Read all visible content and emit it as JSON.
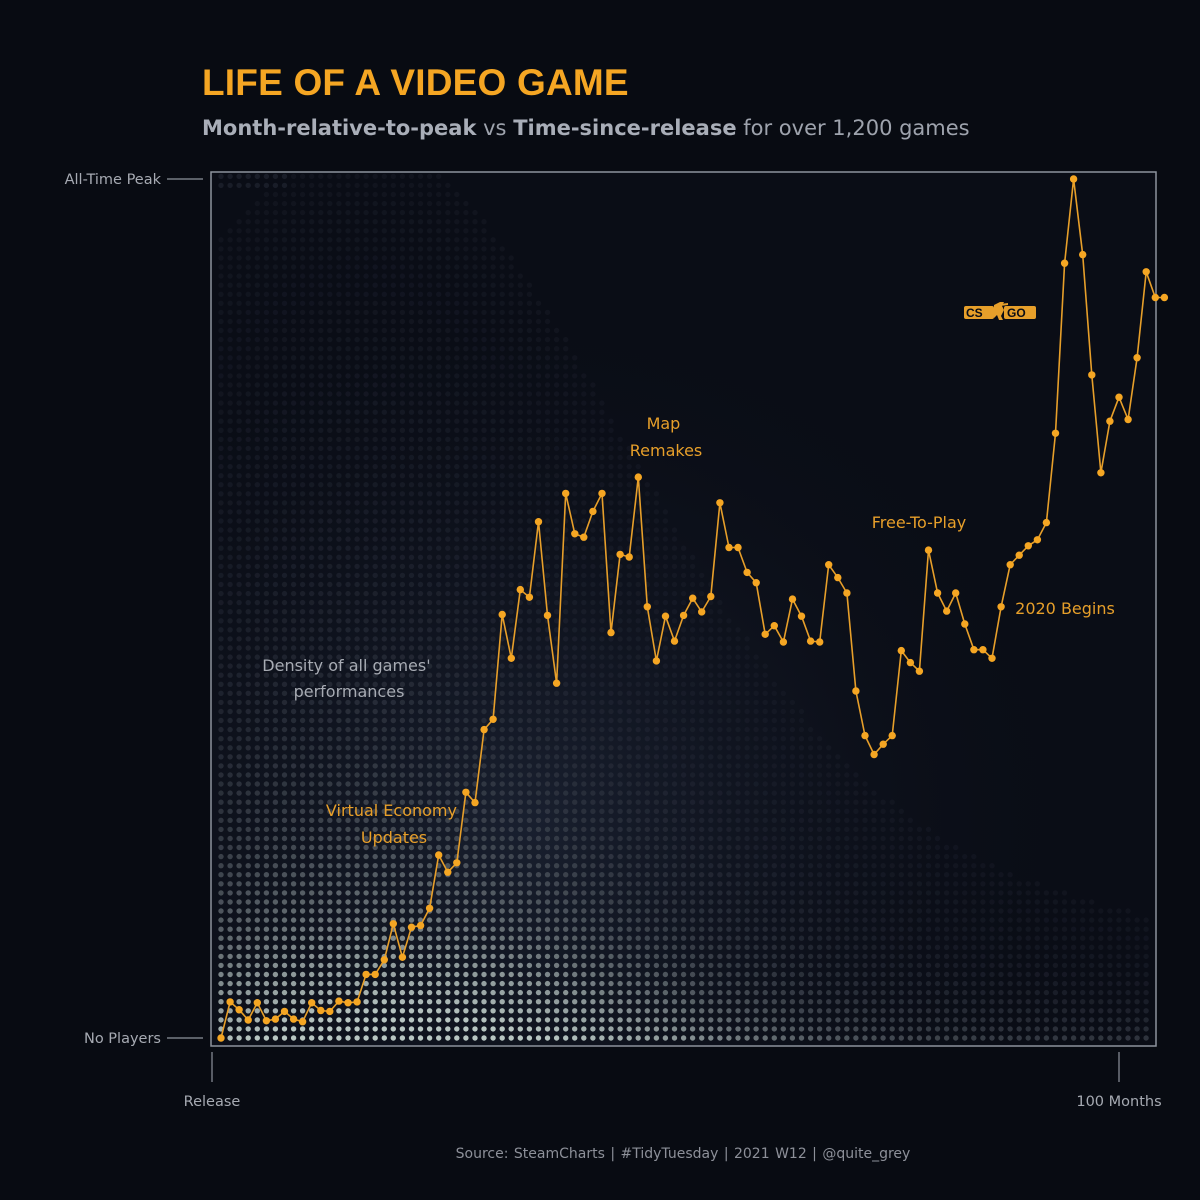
{
  "title": "LIFE OF A VIDEO GAME",
  "subtitle": {
    "metric_y": "Month-relative-to-peak",
    "vs": "vs",
    "metric_x": "Time-since-release",
    "rest": "for over 1,200 games"
  },
  "source": "Source: SteamCharts  |  #TidyTuesday  |  2021 W12  |  @quite_grey",
  "colors": {
    "accent": "#f5a623",
    "line": "#e79f2a",
    "background": "#080b12",
    "frame": "#8d939d",
    "density_low": "#242836",
    "density_high": "#b8c6c2"
  },
  "chart_data": {
    "type": "line",
    "title": "LIFE OF A VIDEO GAME",
    "xlabel": "",
    "ylabel": "",
    "x_ticks": [
      {
        "x": 0,
        "label": "Release"
      },
      {
        "x": 100,
        "label": "100 Months"
      }
    ],
    "y_ticks": [
      {
        "y": 0,
        "label": "No Players"
      },
      {
        "y": 1,
        "label": "All-Time Peak"
      }
    ],
    "xlim": [
      -1,
      103
    ],
    "ylim": [
      0,
      1
    ],
    "grid": false,
    "series": [
      {
        "name": "CS:GO",
        "logo": "csgo-logo-icon",
        "x_start": 1,
        "values": [
          0.0,
          0.042,
          0.033,
          0.021,
          0.041,
          0.02,
          0.022,
          0.031,
          0.022,
          0.019,
          0.041,
          0.032,
          0.031,
          0.043,
          0.041,
          0.042,
          0.074,
          0.074,
          0.091,
          0.133,
          0.094,
          0.129,
          0.131,
          0.151,
          0.213,
          0.193,
          0.204,
          0.286,
          0.274,
          0.359,
          0.371,
          0.493,
          0.442,
          0.522,
          0.513,
          0.601,
          0.492,
          0.413,
          0.634,
          0.587,
          0.583,
          0.613,
          0.634,
          0.472,
          0.563,
          0.56,
          0.653,
          0.502,
          0.439,
          0.491,
          0.462,
          0.492,
          0.512,
          0.496,
          0.514,
          0.623,
          0.571,
          0.571,
          0.542,
          0.53,
          0.47,
          0.48,
          0.461,
          0.511,
          0.491,
          0.462,
          0.461,
          0.551,
          0.536,
          0.518,
          0.404,
          0.352,
          0.33,
          0.342,
          0.352,
          0.451,
          0.437,
          0.427,
          0.568,
          0.518,
          0.497,
          0.518,
          0.482,
          0.452,
          0.452,
          0.442,
          0.502,
          0.551,
          0.562,
          0.573,
          0.58,
          0.6,
          0.704,
          0.902,
          1.0,
          0.912,
          0.772,
          0.658,
          0.718,
          0.746,
          0.72,
          0.792,
          0.892,
          0.862,
          0.862
        ]
      }
    ],
    "annotations": [
      {
        "label": "Density of all games' performances",
        "lines": [
          "Density of all games'",
          "performances"
        ],
        "style": "grey"
      },
      {
        "label": "Virtual Economy Updates",
        "lines": [
          "Virtual Economy",
          "Updates"
        ],
        "style": "accent"
      },
      {
        "label": "Map Remakes",
        "lines": [
          "Map",
          "Remakes"
        ],
        "style": "accent"
      },
      {
        "label": "Free-To-Play",
        "lines": [
          "Free-To-Play"
        ],
        "style": "accent"
      },
      {
        "label": "2020 Begins",
        "lines": [
          "2020 Begins"
        ],
        "style": "accent"
      }
    ],
    "background_layer": "density of all games (dot matrix, brighter = more games)"
  }
}
